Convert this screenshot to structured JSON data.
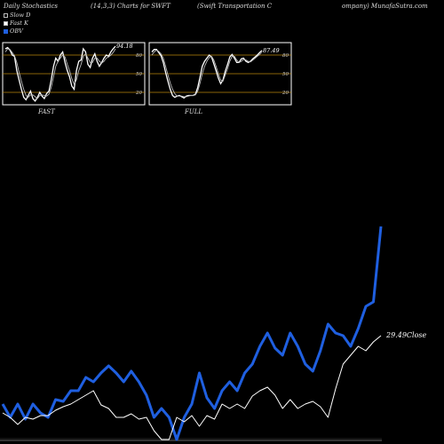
{
  "header": {
    "left": "Daily Stochastics",
    "params": "(14,3,3) Charts for SWFT",
    "company_a": "(Swift Transportation  C",
    "company_b": "ompany) MunafaSutra.com"
  },
  "legend": [
    {
      "label": "Slow  D",
      "color": "#000000"
    },
    {
      "label": "Fast K",
      "color": "#ffffff"
    },
    {
      "label": "OBV",
      "color": "#1f5fe0"
    }
  ],
  "colors": {
    "obv": "#1f5fe0",
    "price": "#ffffff",
    "band": "#b8860b",
    "panel_border": "#ffffff"
  },
  "chart_data": [
    {
      "type": "line",
      "title": "FAST",
      "end_label": "94.18",
      "ylim": [
        0,
        100
      ],
      "y_ticks": [
        20,
        50,
        80
      ],
      "series": [
        {
          "values": [
            90,
            92,
            88,
            80,
            78,
            55,
            40,
            25,
            12,
            8,
            15,
            22,
            10,
            6,
            12,
            20,
            14,
            10,
            18,
            22,
            40,
            62,
            75,
            70,
            80,
            85,
            68,
            55,
            45,
            30,
            25,
            55,
            70,
            72,
            90,
            85,
            65,
            60,
            75,
            82,
            70,
            62,
            68,
            75,
            80,
            78,
            85,
            90,
            94.18
          ]
        },
        {
          "values": [
            85,
            90,
            89,
            84,
            79,
            68,
            52,
            38,
            25,
            15,
            12,
            16,
            16,
            13,
            10,
            15,
            16,
            15,
            14,
            17,
            28,
            45,
            62,
            70,
            75,
            80,
            77,
            65,
            55,
            42,
            33,
            40,
            55,
            65,
            78,
            82,
            75,
            68,
            68,
            75,
            75,
            70,
            67,
            70,
            75,
            77,
            80,
            84,
            90
          ]
        }
      ]
    },
    {
      "type": "line",
      "title": "FULL",
      "end_label": "87.49",
      "ylim": [
        0,
        100
      ],
      "y_ticks": [
        20,
        50,
        80
      ],
      "series": [
        {
          "values": [
            85,
            89,
            89,
            84,
            79,
            68,
            52,
            38,
            25,
            15,
            12,
            14,
            15,
            13,
            11,
            14,
            15,
            15,
            15,
            17,
            28,
            45,
            62,
            70,
            75,
            80,
            77,
            66,
            55,
            43,
            34,
            40,
            54,
            65,
            77,
            81,
            75,
            68,
            68,
            74,
            75,
            70,
            68,
            70,
            74,
            77,
            80,
            84,
            87.49
          ]
        },
        {
          "values": [
            80,
            85,
            88,
            86,
            82,
            75,
            62,
            48,
            35,
            25,
            18,
            14,
            14,
            14,
            13,
            13,
            14,
            15,
            15,
            16,
            22,
            35,
            50,
            62,
            70,
            76,
            78,
            72,
            62,
            50,
            40,
            38,
            48,
            58,
            70,
            78,
            78,
            72,
            68,
            70,
            73,
            72,
            70,
            69,
            72,
            75,
            78,
            81,
            85
          ]
        }
      ]
    },
    {
      "type": "line",
      "end_label": "29.49",
      "end_label_suffix": "Close",
      "series": [
        {
          "name": "OBV",
          "values": [
            455,
            470,
            455,
            472,
            455,
            465,
            470,
            450,
            452,
            440,
            440,
            425,
            430,
            420,
            412,
            420,
            430,
            418,
            430,
            445,
            470,
            460,
            470,
            495,
            470,
            455,
            420,
            448,
            460,
            440,
            430,
            440,
            420,
            410,
            390,
            375,
            392,
            400,
            375,
            390,
            410,
            418,
            395,
            365,
            375,
            378,
            390,
            370,
            345,
            340,
            255
          ]
        },
        {
          "name": "Close",
          "values": [
            465,
            470,
            478,
            470,
            472,
            468,
            468,
            462,
            458,
            455,
            450,
            445,
            440,
            456,
            460,
            470,
            470,
            466,
            472,
            470,
            485,
            495,
            495,
            470,
            475,
            468,
            480,
            468,
            472,
            455,
            460,
            455,
            460,
            446,
            440,
            436,
            445,
            460,
            450,
            460,
            455,
            452,
            458,
            470,
            438,
            410,
            400,
            390,
            395,
            385,
            378
          ]
        }
      ]
    }
  ]
}
